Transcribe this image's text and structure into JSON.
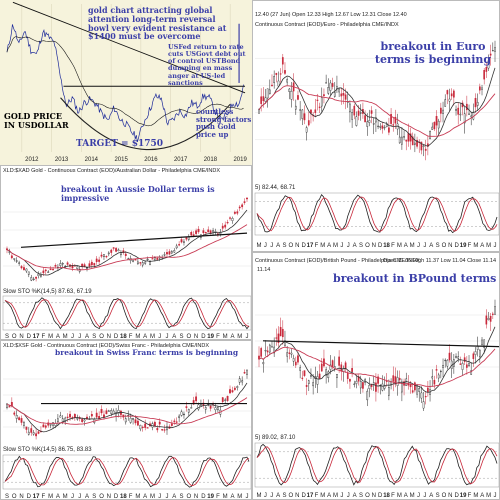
{
  "colors": {
    "annotation_blue": "#3b3fa8",
    "candle_red": "#c8283a",
    "candle_dark": "#222222",
    "ma_red": "#c83c55",
    "ma_gray": "#333333",
    "trend_line": "#111111",
    "bowl": "#222222",
    "gold_line": "#1d2a9a"
  },
  "gold_usd": {
    "annotations": {
      "top": "gold chart attracting global attention long-term reversal bowl very evident resistance at $1400 must be overcome",
      "mid": "USFed return to rate cuts USGovt debt out of control USTBond dumping en mass anger at US-led sanctions",
      "bottom_right": "countless strong factors push Gold price up",
      "left": "GOLD PRICE IN USDOLLAR",
      "target": "TARGET = $1750"
    },
    "x_labels": [
      "2012",
      "2013",
      "2014",
      "2015",
      "2016",
      "2017",
      "2018",
      "2019"
    ]
  },
  "euro": {
    "header": "Continuous Contract (EOD)/Euro - Philadelphia CME/INDX",
    "header_quote": "12.40 (27 Jun)   Open 12.33   High 12.67   Low 12.31   Close 12.40",
    "annotation": "breakout in Euro terms is beginning",
    "osc_label": "5) 82.44, 68.71",
    "months": [
      "M",
      "J",
      "J",
      "A",
      "S",
      "O",
      "N",
      "D",
      "17",
      "F",
      "M",
      "A",
      "M",
      "J",
      "J",
      "A",
      "S",
      "O",
      "N",
      "D",
      "18",
      "F",
      "M",
      "A",
      "M",
      "J",
      "J",
      "A",
      "S",
      "O",
      "N",
      "D",
      "19",
      "F",
      "M",
      "A",
      "M",
      "J"
    ]
  },
  "aud": {
    "header": "XLD:$XAD Gold - Continuous Contract (EOD)/Australian Dollar - Philadelphia CME/INDX",
    "annotation": "breakout in Aussie Dollar terms is impressive",
    "osc_label": "Slow STO %K(14,5) 87.63, 67.19",
    "months": [
      "S",
      "O",
      "N",
      "D",
      "17",
      "F",
      "M",
      "A",
      "M",
      "J",
      "J",
      "A",
      "S",
      "O",
      "N",
      "D",
      "18",
      "F",
      "M",
      "A",
      "M",
      "J",
      "J",
      "A",
      "S",
      "O",
      "N",
      "D",
      "19",
      "F",
      "M",
      "A",
      "M",
      "J"
    ]
  },
  "gbp": {
    "header": "Continuous Contract (EOD)/British Pound - Philadelphia CME/INDX",
    "header_quote": "Open 11.06   High 11.37   Low 11.04   Close 11.14",
    "level": "11.14",
    "annotation": "breakout in BPound terms is bu",
    "osc_label": "5) 89.02, 87.10",
    "months": [
      "M",
      "J",
      "J",
      "A",
      "S",
      "O",
      "N",
      "D",
      "17",
      "F",
      "M",
      "A",
      "M",
      "J",
      "J",
      "A",
      "S",
      "O",
      "N",
      "D",
      "18",
      "F",
      "M",
      "A",
      "M",
      "J",
      "J",
      "A",
      "S",
      "O",
      "N",
      "D",
      "19",
      "F",
      "M",
      "A",
      "M",
      "J"
    ]
  },
  "chf": {
    "header": "XLD:$XSF Gold - Continuous Contract (EOD)/Swiss Franc - Philadelphia CME/INDX",
    "annotation": "breakout in Swiss Franc terms is beginning",
    "osc_label": "Slow STO %K(14,5) 86.75, 83.83",
    "months": [
      "S",
      "O",
      "N",
      "D",
      "17",
      "F",
      "M",
      "A",
      "M",
      "J",
      "J",
      "A",
      "S",
      "O",
      "N",
      "D",
      "18",
      "F",
      "M",
      "A",
      "M",
      "J",
      "J",
      "A",
      "S",
      "O",
      "N",
      "D",
      "19",
      "F",
      "M",
      "A",
      "M",
      "J"
    ]
  },
  "chart_data": [
    {
      "type": "line",
      "title": "GOLD PRICE IN USDOLLAR",
      "x": [
        2011.5,
        2011.7,
        2011.9,
        2012.1,
        2012.3,
        2012.5,
        2012.7,
        2012.9,
        2013.1,
        2013.3,
        2013.5,
        2013.7,
        2013.9,
        2014.1,
        2014.3,
        2014.5,
        2014.7,
        2014.9,
        2015.1,
        2015.3,
        2015.5,
        2015.7,
        2015.9,
        2016.1,
        2016.3,
        2016.5,
        2016.7,
        2016.9,
        2017.1,
        2017.3,
        2017.5,
        2017.7,
        2017.9,
        2018.1,
        2018.3,
        2018.5,
        2018.7,
        2018.9,
        2019.1,
        2019.3,
        2019.45
      ],
      "values": [
        1600,
        1780,
        1650,
        1740,
        1620,
        1590,
        1730,
        1700,
        1660,
        1450,
        1280,
        1330,
        1240,
        1300,
        1320,
        1290,
        1230,
        1190,
        1270,
        1200,
        1170,
        1120,
        1080,
        1180,
        1260,
        1340,
        1320,
        1170,
        1200,
        1250,
        1220,
        1300,
        1280,
        1340,
        1330,
        1250,
        1190,
        1230,
        1300,
        1290,
        1400
      ],
      "ylim": [
        1000,
        1900
      ]
    },
    {
      "type": "line",
      "title": "breakout in Euro terms is beginning",
      "x": [
        "May16",
        "Sep16",
        "Jan17",
        "May17",
        "Sep17",
        "Jan18",
        "May18",
        "Sep18",
        "Jan19",
        "May19",
        "Jun19"
      ],
      "values": [
        11.3,
        11.9,
        10.9,
        11.7,
        11.1,
        11.0,
        10.8,
        10.5,
        11.4,
        11.0,
        12.4
      ]
    },
    {
      "type": "line",
      "title": "breakout in Aussie Dollar terms is impressive",
      "x": [
        "Sep16",
        "Jan17",
        "May17",
        "Sep17",
        "Jan18",
        "May18",
        "Sep18",
        "Jan19",
        "May19",
        "Jun19"
      ],
      "values": [
        1720,
        1560,
        1640,
        1620,
        1730,
        1650,
        1700,
        1820,
        1840,
        2030
      ]
    },
    {
      "type": "line",
      "title": "breakout in BPound terms is bu",
      "x": [
        "May16",
        "Sep16",
        "Jan17",
        "May17",
        "Sep17",
        "Jan18",
        "May18",
        "Sep18",
        "Jan19",
        "May19",
        "Jun19"
      ],
      "values": [
        10.2,
        10.6,
        9.8,
        10.1,
        9.9,
        9.7,
        9.9,
        9.6,
        10.3,
        10.1,
        11.14
      ]
    },
    {
      "type": "line",
      "title": "breakout in Swiss Franc terms is beginning",
      "x": [
        "Sep16",
        "Jan17",
        "May17",
        "Sep17",
        "Jan18",
        "May18",
        "Sep18",
        "Jan19",
        "May19",
        "Jun19"
      ],
      "values": [
        1290,
        1200,
        1250,
        1240,
        1270,
        1230,
        1220,
        1290,
        1280,
        1380
      ]
    }
  ]
}
